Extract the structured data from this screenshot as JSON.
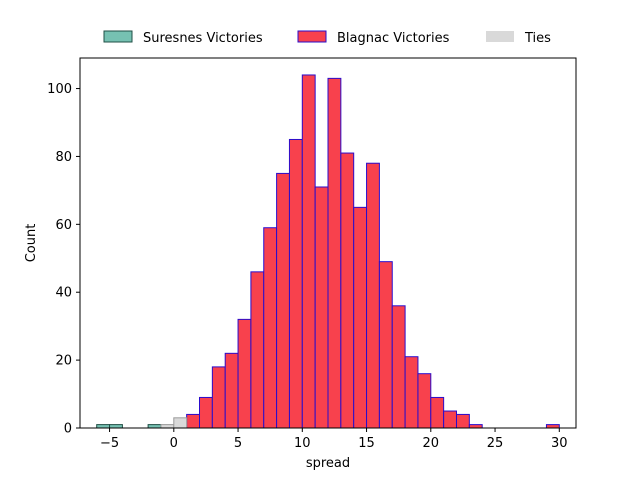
{
  "chart_data": {
    "type": "bar",
    "title": "",
    "xlabel": "spread",
    "ylabel": "Count",
    "xlim": [
      -7.3,
      31.3
    ],
    "ylim": [
      0,
      109
    ],
    "xticks": [
      -5,
      0,
      5,
      10,
      15,
      20,
      25,
      30
    ],
    "yticks": [
      0,
      20,
      40,
      60,
      80,
      100
    ],
    "grid": false,
    "legend": {
      "placement": "top-center-outside",
      "columns": 3
    },
    "bin_width": 1,
    "series": [
      {
        "name": "Suresnes Victories",
        "color": "#76c1b2",
        "edge_color": "#1f4f45",
        "bins": [
          {
            "x_start": -6,
            "count": 1
          },
          {
            "x_start": -5,
            "count": 1
          },
          {
            "x_start": -2,
            "count": 1
          }
        ]
      },
      {
        "name": "Blagnac Victories",
        "color": "#f8414d",
        "edge_color": "#2a0ccc",
        "bins": [
          {
            "x_start": 1,
            "count": 4
          },
          {
            "x_start": 2,
            "count": 9
          },
          {
            "x_start": 3,
            "count": 18
          },
          {
            "x_start": 4,
            "count": 22
          },
          {
            "x_start": 5,
            "count": 32
          },
          {
            "x_start": 6,
            "count": 46
          },
          {
            "x_start": 7,
            "count": 59
          },
          {
            "x_start": 8,
            "count": 75
          },
          {
            "x_start": 9,
            "count": 85
          },
          {
            "x_start": 10,
            "count": 104
          },
          {
            "x_start": 11,
            "count": 71
          },
          {
            "x_start": 12,
            "count": 103
          },
          {
            "x_start": 13,
            "count": 81
          },
          {
            "x_start": 14,
            "count": 65
          },
          {
            "x_start": 15,
            "count": 78
          },
          {
            "x_start": 16,
            "count": 49
          },
          {
            "x_start": 17,
            "count": 36
          },
          {
            "x_start": 18,
            "count": 21
          },
          {
            "x_start": 19,
            "count": 16
          },
          {
            "x_start": 20,
            "count": 9
          },
          {
            "x_start": 21,
            "count": 5
          },
          {
            "x_start": 22,
            "count": 4
          },
          {
            "x_start": 23,
            "count": 1
          },
          {
            "x_start": 29,
            "count": 1
          }
        ]
      },
      {
        "name": "Ties",
        "color": "#d9d9d9",
        "edge_color": "#9a9a9a",
        "bins": [
          {
            "x_start": -1,
            "count": 1
          },
          {
            "x_start": 0,
            "count": 3
          }
        ]
      }
    ]
  }
}
